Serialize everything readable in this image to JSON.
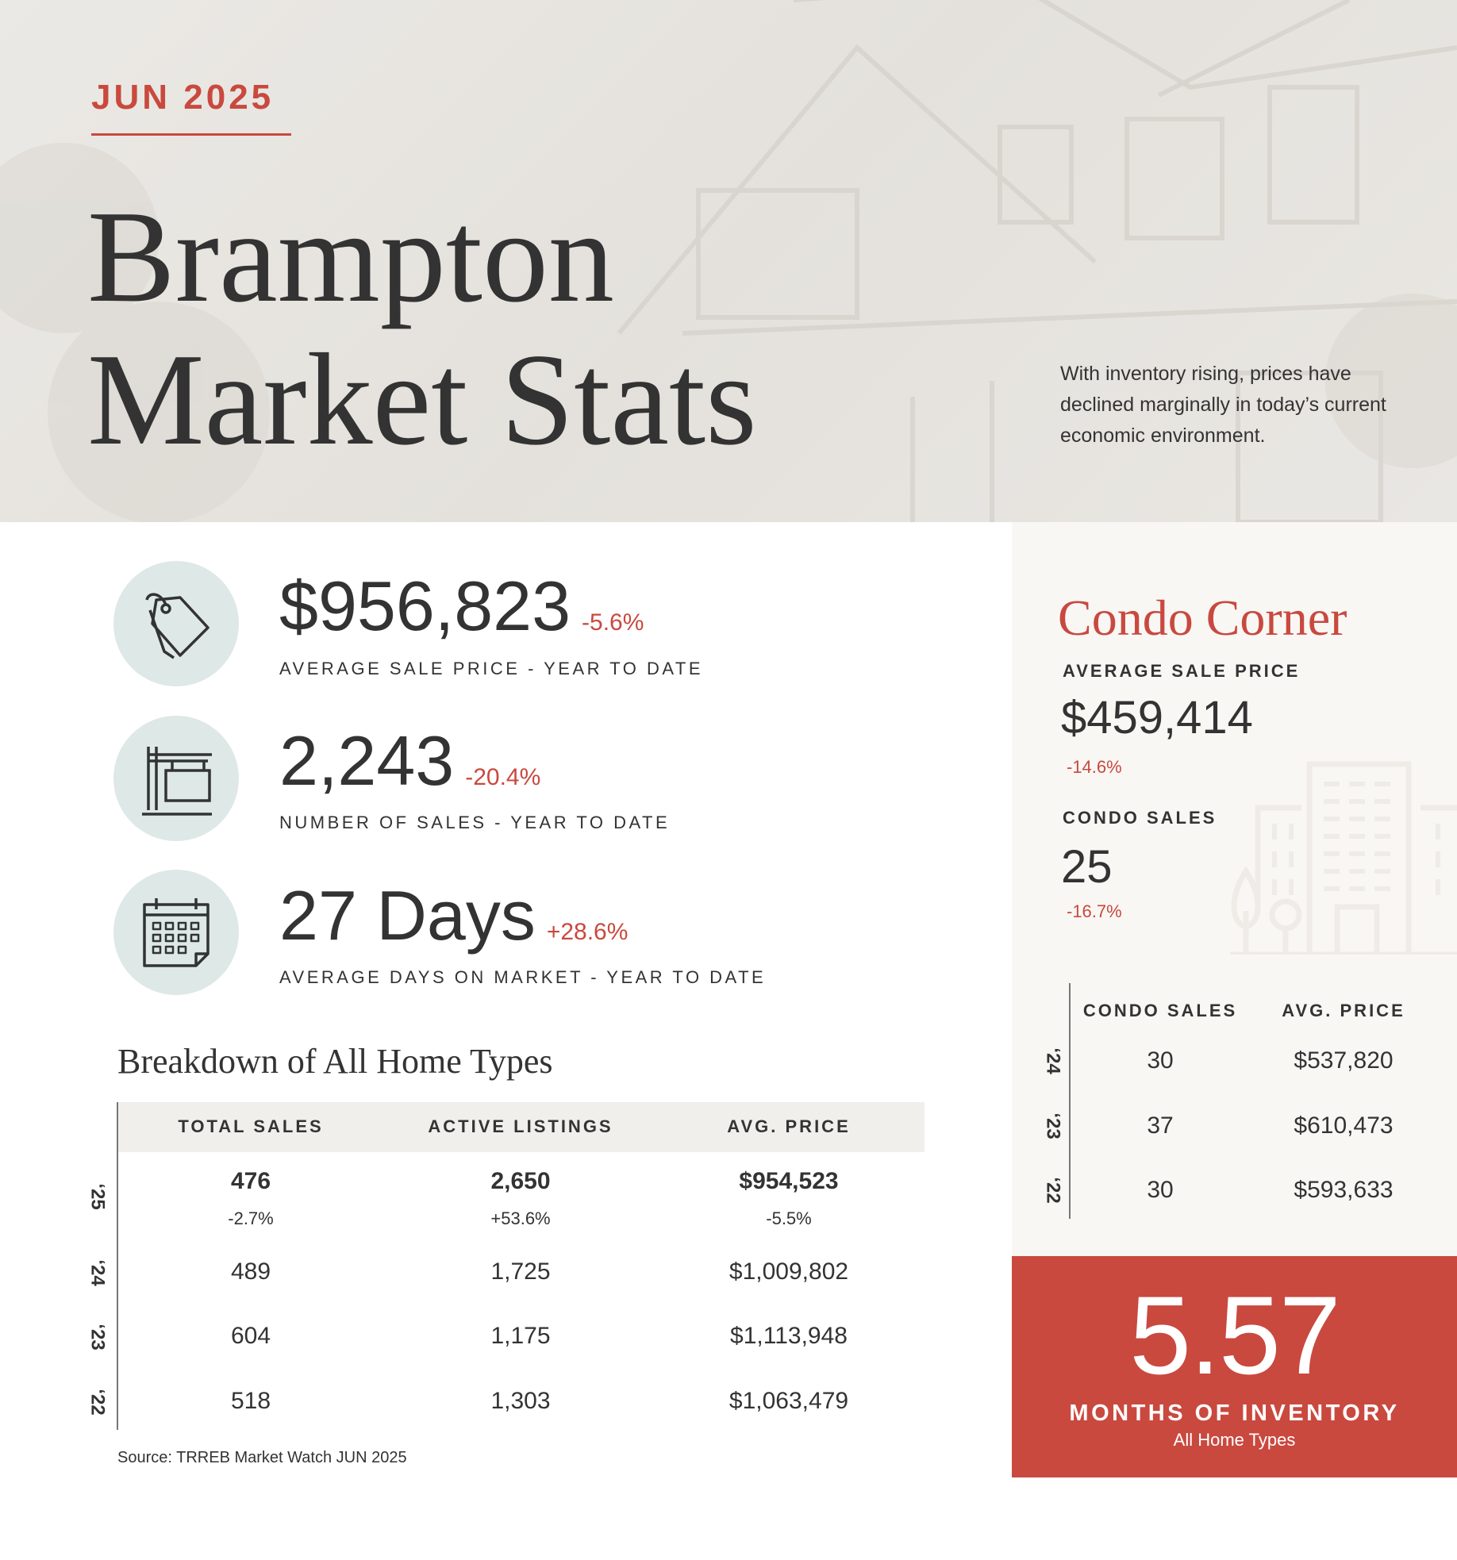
{
  "header": {
    "month": "JUN 2025",
    "title_line1": "Brampton",
    "title_line2": "Market Stats",
    "intro": "With inventory rising, prices have declined marginally in today’s current economic environment."
  },
  "stats": [
    {
      "value": "$956,823",
      "change": "-5.6%",
      "label": "AVERAGE SALE PRICE - YEAR TO DATE",
      "icon": "price-tag-icon"
    },
    {
      "value": "2,243",
      "change": "-20.4%",
      "label": "NUMBER OF SALES - YEAR TO DATE",
      "icon": "for-sale-sign-icon"
    },
    {
      "value": "27 Days",
      "change": "+28.6%",
      "label": "AVERAGE DAYS ON MARKET - YEAR TO DATE",
      "icon": "calendar-icon"
    }
  ],
  "breakdown": {
    "title": "Breakdown of All Home Types",
    "headers": [
      "TOTAL SALES",
      "ACTIVE LISTINGS",
      "AVG. PRICE"
    ],
    "rows": [
      {
        "year": "‘25",
        "cells": [
          "476",
          "2,650",
          "$954,523"
        ],
        "changes": [
          "-2.7%",
          "+53.6%",
          "-5.5%"
        ]
      },
      {
        "year": "‘24",
        "cells": [
          "489",
          "1,725",
          "$1,009,802"
        ]
      },
      {
        "year": "‘23",
        "cells": [
          "604",
          "1,175",
          "$1,113,948"
        ]
      },
      {
        "year": "‘22",
        "cells": [
          "518",
          "1,303",
          "$1,063,479"
        ]
      }
    ],
    "source": "Source: TRREB Market Watch JUN 2025"
  },
  "condo": {
    "title": "Condo Corner",
    "avg_label": "AVERAGE SALE PRICE",
    "avg_value": "$459,414",
    "avg_change": "-14.6%",
    "sales_label": "CONDO SALES",
    "sales_value": "25",
    "sales_change": "-16.7%",
    "headers": [
      "CONDO SALES",
      "AVG. PRICE"
    ],
    "rows": [
      {
        "year": "‘24",
        "cells": [
          "30",
          "$537,820"
        ]
      },
      {
        "year": "‘23",
        "cells": [
          "37",
          "$610,473"
        ]
      },
      {
        "year": "‘22",
        "cells": [
          "30",
          "$593,633"
        ]
      }
    ]
  },
  "inventory": {
    "value": "5.57",
    "label": "MONTHS OF INVENTORY",
    "sub": "All Home Types"
  },
  "colors": {
    "accent": "#c9493f",
    "icon_bg": "#dde8e7",
    "panel": "#f8f7f4"
  }
}
